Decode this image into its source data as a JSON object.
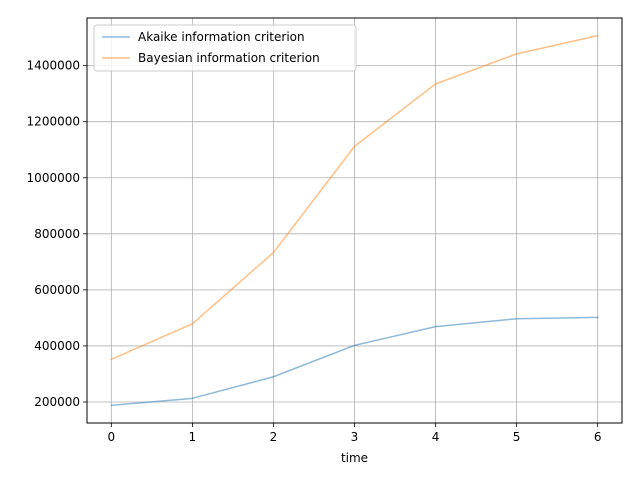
{
  "chart_data": {
    "type": "line",
    "title": "",
    "xlabel": "time",
    "ylabel": "",
    "x": [
      0,
      1,
      2,
      3,
      4,
      5,
      6
    ],
    "xlim": [
      -0.3,
      6.3
    ],
    "ylim": [
      125000,
      1570000
    ],
    "xticks": [
      "0",
      "1",
      "2",
      "3",
      "4",
      "5",
      "6"
    ],
    "yticks": [
      200000,
      400000,
      600000,
      800000,
      1000000,
      1200000,
      1400000
    ],
    "ytick_labels": [
      "200000",
      "400000",
      "600000",
      "800000",
      "1000000",
      "1200000",
      "1400000"
    ],
    "grid": true,
    "legend_position": "top-left",
    "series": [
      {
        "name": "Akaike information criterion",
        "color": "#1f77b4",
        "values": [
          188000,
          213000,
          290000,
          402000,
          469000,
          497000,
          502000
        ]
      },
      {
        "name": "Bayesian information criterion",
        "color": "#ff7f0e",
        "values": [
          352000,
          479000,
          733000,
          1112000,
          1335000,
          1442000,
          1507000
        ]
      }
    ]
  }
}
